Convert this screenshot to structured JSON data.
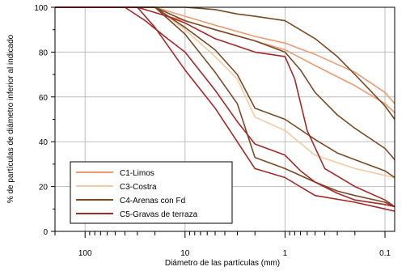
{
  "chart_data": {
    "type": "line",
    "xlabel": "Diámetro de las partículas (mm)",
    "ylabel": "% de partículas de diámetro inferior al indicado",
    "x_scale": "log",
    "x_reversed": true,
    "xlim": [
      200,
      0.08
    ],
    "ylim": [
      0,
      100
    ],
    "x_ticks": [
      100,
      10,
      1,
      0.1
    ],
    "x_tick_labels": [
      "100",
      "10",
      "1",
      "0.1"
    ],
    "y_ticks": [
      0,
      20,
      40,
      60,
      80,
      100
    ],
    "y_tick_labels": [
      "0",
      "20",
      "40",
      "60",
      "80",
      "100"
    ],
    "grid": true,
    "legend_position": "bottom-left",
    "colors": {
      "C1-Limos": "#ed9a72",
      "C3-Costra": "#f6c9a2",
      "C4-Arenas con Fd": "#7a4a24",
      "C5-Gravas de terraza": "#a52828"
    },
    "legend": [
      {
        "label": "C1-Limos",
        "color": "#ed9a72"
      },
      {
        "label": "C3-Costra",
        "color": "#f6c9a2"
      },
      {
        "label": "C4-Arenas con Fd",
        "color": "#7a4a24"
      },
      {
        "label": "C5-Gravas de terraza",
        "color": "#a52828"
      }
    ],
    "series": [
      {
        "name": "C1-Limos",
        "color": "#ed9a72",
        "points": [
          [
            200,
            100
          ],
          [
            20,
            100
          ],
          [
            10,
            96
          ],
          [
            5,
            92
          ],
          [
            2,
            87
          ],
          [
            1,
            84
          ],
          [
            0.5,
            79
          ],
          [
            0.2,
            71
          ],
          [
            0.1,
            62
          ],
          [
            0.08,
            57
          ]
        ]
      },
      {
        "name": "C1-Limos",
        "color": "#ed9a72",
        "points": [
          [
            200,
            100
          ],
          [
            20,
            100
          ],
          [
            15,
            96
          ],
          [
            10,
            94
          ],
          [
            5,
            90
          ],
          [
            2,
            85
          ],
          [
            1,
            81
          ],
          [
            0.5,
            74
          ],
          [
            0.2,
            65
          ],
          [
            0.1,
            57
          ],
          [
            0.08,
            53
          ]
        ]
      },
      {
        "name": "C3-Costra",
        "color": "#f6c9a2",
        "points": [
          [
            200,
            100
          ],
          [
            20,
            100
          ],
          [
            10,
            90
          ],
          [
            5,
            78
          ],
          [
            3,
            68
          ],
          [
            2,
            51
          ],
          [
            1,
            45
          ],
          [
            0.5,
            34
          ],
          [
            0.2,
            28
          ],
          [
            0.1,
            25
          ],
          [
            0.08,
            24
          ]
        ]
      },
      {
        "name": "C4-Arenas con Fd",
        "color": "#7a4a24",
        "points": [
          [
            200,
            100
          ],
          [
            10,
            100
          ],
          [
            5,
            99
          ],
          [
            3,
            97
          ],
          [
            2,
            96
          ],
          [
            1,
            94
          ],
          [
            0.5,
            86
          ],
          [
            0.3,
            78
          ],
          [
            0.2,
            70
          ],
          [
            0.1,
            56
          ],
          [
            0.08,
            50
          ]
        ]
      },
      {
        "name": "C4-Arenas con Fd",
        "color": "#7a4a24",
        "points": [
          [
            200,
            100
          ],
          [
            20,
            100
          ],
          [
            10,
            94
          ],
          [
            5,
            90
          ],
          [
            2,
            85
          ],
          [
            1,
            80
          ],
          [
            0.7,
            72
          ],
          [
            0.5,
            62
          ],
          [
            0.3,
            52
          ],
          [
            0.2,
            46
          ],
          [
            0.1,
            37
          ],
          [
            0.08,
            32
          ]
        ]
      },
      {
        "name": "C4-Arenas con Fd",
        "color": "#7a4a24",
        "points": [
          [
            200,
            100
          ],
          [
            20,
            100
          ],
          [
            10,
            91
          ],
          [
            5,
            81
          ],
          [
            3,
            70
          ],
          [
            2,
            55
          ],
          [
            1,
            50
          ],
          [
            0.5,
            41
          ],
          [
            0.3,
            35
          ],
          [
            0.2,
            32
          ],
          [
            0.1,
            27
          ],
          [
            0.08,
            24
          ]
        ]
      },
      {
        "name": "C4-Arenas con Fd",
        "color": "#7a4a24",
        "points": [
          [
            200,
            100
          ],
          [
            20,
            100
          ],
          [
            10,
            88
          ],
          [
            5,
            71
          ],
          [
            3,
            57
          ],
          [
            2,
            33
          ],
          [
            1,
            28
          ],
          [
            0.5,
            22
          ],
          [
            0.3,
            18
          ],
          [
            0.2,
            16
          ],
          [
            0.1,
            13
          ],
          [
            0.08,
            11
          ]
        ]
      },
      {
        "name": "C5-Gravas de terraza",
        "color": "#a52828",
        "points": [
          [
            200,
            100
          ],
          [
            40,
            100
          ],
          [
            25,
            94
          ],
          [
            15,
            86
          ],
          [
            10,
            80
          ],
          [
            5,
            63
          ],
          [
            3,
            49
          ],
          [
            2,
            39
          ],
          [
            1,
            34
          ],
          [
            0.7,
            27
          ],
          [
            0.5,
            22
          ],
          [
            0.3,
            17
          ],
          [
            0.2,
            14
          ],
          [
            0.1,
            12
          ],
          [
            0.08,
            11
          ]
        ]
      },
      {
        "name": "C5-Gravas de terraza",
        "color": "#a52828",
        "points": [
          [
            200,
            100
          ],
          [
            30,
            100
          ],
          [
            20,
            91
          ],
          [
            10,
            72
          ],
          [
            5,
            55
          ],
          [
            3,
            40
          ],
          [
            2,
            28
          ],
          [
            1,
            24
          ],
          [
            0.5,
            16
          ],
          [
            0.2,
            13
          ],
          [
            0.1,
            10
          ],
          [
            0.08,
            9
          ]
        ]
      },
      {
        "name": "C5-Gravas de terraza",
        "color": "#a52828",
        "points": [
          [
            200,
            100
          ],
          [
            30,
            100
          ],
          [
            15,
            96
          ],
          [
            10,
            93
          ],
          [
            5,
            86
          ],
          [
            2,
            80
          ],
          [
            1,
            78
          ],
          [
            0.8,
            68
          ],
          [
            0.6,
            45
          ],
          [
            0.4,
            28
          ],
          [
            0.2,
            20
          ],
          [
            0.1,
            14
          ],
          [
            0.08,
            11
          ]
        ]
      }
    ]
  }
}
